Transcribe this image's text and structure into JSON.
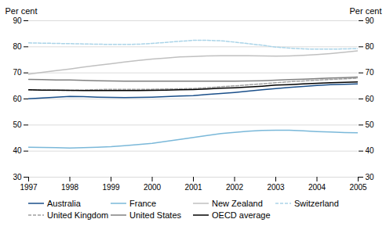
{
  "chart_data": {
    "type": "line",
    "x": [
      1997,
      1997.33,
      1997.67,
      1998,
      1998.33,
      1998.67,
      1999,
      1999.33,
      1999.67,
      2000,
      2000.33,
      2000.67,
      2001,
      2001.33,
      2001.67,
      2002,
      2002.33,
      2002.67,
      2003,
      2003.33,
      2003.67,
      2004,
      2004.33,
      2004.67,
      2005
    ],
    "series": [
      {
        "name": "Australia",
        "color": "#1a4f8a",
        "line_style": "solid",
        "values": [
          60.1,
          60.4,
          60.7,
          61.0,
          60.9,
          60.7,
          60.6,
          60.5,
          60.6,
          60.7,
          60.9,
          61.1,
          61.3,
          61.7,
          62.1,
          62.5,
          63.0,
          63.5,
          64.0,
          64.4,
          64.8,
          65.2,
          65.5,
          65.6,
          65.8
        ]
      },
      {
        "name": "France",
        "color": "#7ab8d9",
        "line_style": "solid",
        "values": [
          41.5,
          41.4,
          41.3,
          41.2,
          41.3,
          41.5,
          41.7,
          42.1,
          42.5,
          43.0,
          43.7,
          44.5,
          45.2,
          46.0,
          46.7,
          47.2,
          47.6,
          47.9,
          48.0,
          48.0,
          47.8,
          47.5,
          47.3,
          47.1,
          47.0
        ]
      },
      {
        "name": "New Zealand",
        "color": "#c0c0c0",
        "line_style": "solid",
        "values": [
          69.5,
          70.2,
          70.9,
          71.5,
          72.2,
          72.9,
          73.5,
          74.2,
          74.8,
          75.3,
          75.7,
          76.1,
          76.3,
          76.5,
          76.6,
          76.6,
          76.6,
          76.5,
          76.4,
          76.5,
          76.7,
          77.0,
          77.4,
          77.9,
          78.5
        ]
      },
      {
        "name": "Switzerland",
        "color": "#aad4e8",
        "line_style": "dashed",
        "values": [
          81.5,
          81.4,
          81.3,
          81.2,
          81.1,
          81.0,
          80.9,
          80.9,
          81.0,
          81.3,
          81.7,
          82.1,
          82.5,
          82.5,
          82.3,
          81.8,
          81.2,
          80.6,
          79.9,
          79.5,
          79.2,
          79.1,
          79.1,
          79.2,
          79.3
        ]
      },
      {
        "name": "United Kingdom",
        "color": "#a0a0a0",
        "line_style": "dashed",
        "values": [
          63.5,
          63.4,
          63.3,
          63.3,
          63.4,
          63.6,
          63.7,
          63.7,
          63.7,
          63.7,
          63.8,
          63.9,
          64.0,
          64.3,
          64.7,
          65.0,
          65.4,
          65.8,
          66.2,
          66.6,
          66.9,
          67.2,
          67.5,
          67.7,
          68.0
        ]
      },
      {
        "name": "United States",
        "color": "#808080",
        "line_style": "solid",
        "values": [
          67.5,
          67.4,
          67.3,
          67.3,
          67.1,
          67.0,
          66.9,
          66.8,
          66.8,
          66.8,
          66.8,
          66.8,
          66.8,
          66.8,
          66.8,
          66.8,
          66.9,
          67.0,
          67.2,
          67.4,
          67.6,
          67.8,
          68.0,
          68.2,
          68.4
        ]
      },
      {
        "name": "OECD average",
        "color": "#000000",
        "line_style": "solid",
        "values": [
          63.5,
          63.4,
          63.4,
          63.3,
          63.2,
          63.2,
          63.2,
          63.2,
          63.2,
          63.3,
          63.4,
          63.5,
          63.6,
          63.8,
          64.1,
          64.3,
          64.6,
          64.9,
          65.3,
          65.5,
          65.8,
          66.0,
          66.2,
          66.4,
          66.5
        ]
      }
    ],
    "xlim": [
      1997,
      2005
    ],
    "xticks": [
      1997,
      1998,
      1999,
      2000,
      2001,
      2002,
      2003,
      2004,
      2005
    ],
    "ylim": [
      30,
      90
    ],
    "yticks": [
      30,
      40,
      50,
      60,
      70,
      80,
      90
    ],
    "y2lim": [
      30,
      90
    ],
    "y2ticks": [
      30,
      40,
      50,
      60,
      70,
      80,
      90
    ],
    "ylabel": "Per cent",
    "y2label": "Per cent",
    "grid": true,
    "legend": "bottom"
  }
}
